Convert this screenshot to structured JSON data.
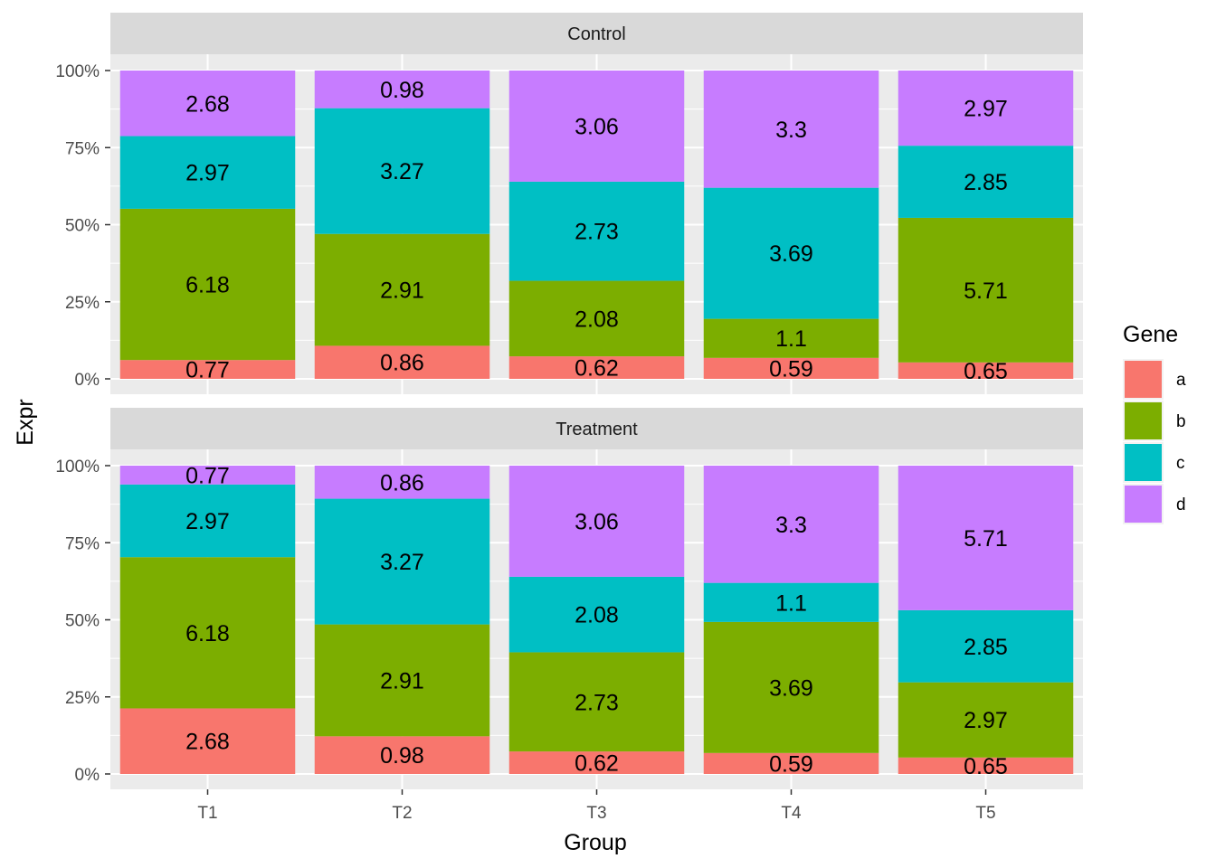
{
  "chart_data": {
    "type": "bar",
    "stacking": "percent",
    "xlabel": "Group",
    "ylabel": "Expr",
    "ylim": [
      0,
      1
    ],
    "yticks": [
      "0%",
      "25%",
      "50%",
      "75%",
      "100%"
    ],
    "categories": [
      "T1",
      "T2",
      "T3",
      "T4",
      "T5"
    ],
    "grid": true,
    "legend": {
      "title": "Gene",
      "position": "right",
      "entries": [
        {
          "name": "a",
          "color": "#F8766D"
        },
        {
          "name": "b",
          "color": "#7CAE00"
        },
        {
          "name": "c",
          "color": "#00BFC4"
        },
        {
          "name": "d",
          "color": "#C77CFF"
        }
      ]
    },
    "facets": [
      {
        "name": "Control",
        "series": [
          {
            "name": "a",
            "values": [
              0.77,
              0.86,
              0.62,
              0.59,
              0.65
            ]
          },
          {
            "name": "b",
            "values": [
              6.18,
              2.91,
              2.08,
              1.1,
              5.71
            ]
          },
          {
            "name": "c",
            "values": [
              2.97,
              3.27,
              2.73,
              3.69,
              2.85
            ]
          },
          {
            "name": "d",
            "values": [
              2.68,
              0.98,
              3.06,
              3.3,
              2.97
            ]
          }
        ]
      },
      {
        "name": "Treatment",
        "series": [
          {
            "name": "a",
            "values": [
              2.68,
              0.98,
              0.62,
              0.59,
              0.65
            ]
          },
          {
            "name": "b",
            "values": [
              6.18,
              2.91,
              2.73,
              3.69,
              2.97
            ]
          },
          {
            "name": "c",
            "values": [
              2.97,
              3.27,
              2.08,
              1.1,
              2.85
            ]
          },
          {
            "name": "d",
            "values": [
              0.77,
              0.86,
              3.06,
              3.3,
              5.71
            ]
          }
        ]
      }
    ]
  }
}
